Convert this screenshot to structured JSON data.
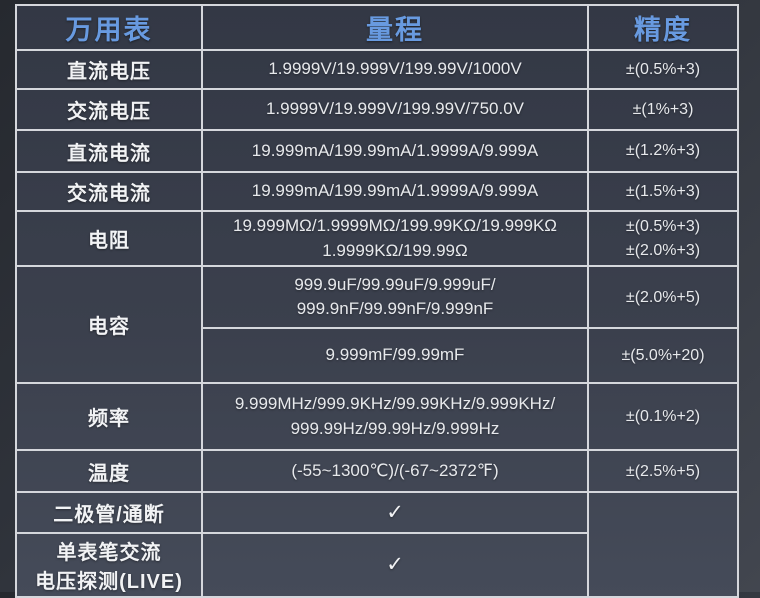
{
  "colors": {
    "header_text": "#689ae0",
    "body_text": "#eceded",
    "border": "#d5d7dc",
    "table_bg_top": "#333845",
    "table_bg_bottom": "#454b59",
    "page_bg": "#30343c"
  },
  "table": {
    "headers": [
      "万用表",
      "量程",
      "精度"
    ],
    "rows": [
      {
        "label": "直流电压",
        "range": [
          "1.9999V/19.999V/199.99V/1000V"
        ],
        "accuracy": [
          "±(0.5%+3)"
        ]
      },
      {
        "label": "交流电压",
        "range": [
          "1.9999V/19.999V/199.99V/750.0V"
        ],
        "accuracy": [
          "±(1%+3)"
        ]
      },
      {
        "label": "直流电流",
        "range": [
          "19.999mA/199.99mA/1.9999A/9.999A"
        ],
        "accuracy": [
          "±(1.2%+3)"
        ]
      },
      {
        "label": "交流电流",
        "range": [
          "19.999mA/199.99mA/1.9999A/9.999A"
        ],
        "accuracy": [
          "±(1.5%+3)"
        ]
      },
      {
        "label": "电阻",
        "range": [
          "19.999MΩ/1.9999MΩ/199.99KΩ/19.999KΩ",
          "1.9999KΩ/199.99Ω"
        ],
        "accuracy": [
          "±(0.5%+3)",
          "±(2.0%+3)"
        ]
      },
      {
        "label": "电容",
        "sub": [
          {
            "range": [
              "999.9uF/99.99uF/9.999uF/",
              "999.9nF/99.99nF/9.999nF"
            ],
            "accuracy": "±(2.0%+5)"
          },
          {
            "range": [
              "9.999mF/99.99mF"
            ],
            "accuracy": "±(5.0%+20)"
          }
        ]
      },
      {
        "label": "频率",
        "range": [
          "9.999MHz/999.9KHz/99.99KHz/9.999KHz/",
          "999.99Hz/99.99Hz/9.999Hz"
        ],
        "accuracy": [
          "±(0.1%+2)"
        ]
      },
      {
        "label": "温度",
        "range": [
          "(-55~1300℃)/(-67~2372℉)"
        ],
        "accuracy": [
          "±(2.5%+5)"
        ]
      },
      {
        "label": "二极管/通断",
        "range": [
          "✓"
        ],
        "accuracy": []
      },
      {
        "label_lines": [
          "单表笔交流",
          "电压探测(LIVE)"
        ],
        "range": [
          "✓"
        ],
        "accuracy": []
      }
    ]
  }
}
